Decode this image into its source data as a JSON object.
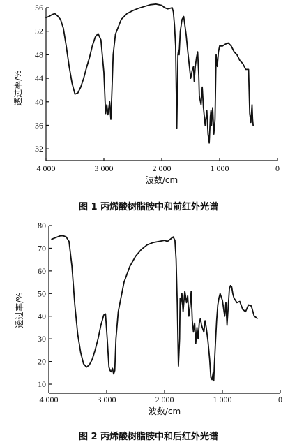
{
  "chart_data": [
    {
      "type": "line",
      "title": "图 1   丙烯酸树脂胺中和前红外光谱",
      "xlabel": "波数/cm",
      "ylabel": "透过率/%",
      "xlim": [
        4000,
        0
      ],
      "ylim": [
        30,
        56
      ],
      "xticks": [
        4000,
        3000,
        2000,
        1000,
        0
      ],
      "xtick_labels": [
        "4 000",
        "3 000",
        "2 000",
        "1 000",
        "0"
      ],
      "yticks": [
        32,
        36,
        40,
        44,
        48,
        52,
        56
      ],
      "ytick_labels": [
        "32",
        "36",
        "40",
        "44",
        "48",
        "52",
        "56"
      ],
      "grid": false,
      "series": [
        {
          "x": [
            4000,
            3950,
            3900,
            3850,
            3800,
            3750,
            3700,
            3650,
            3600,
            3550,
            3500,
            3450,
            3400,
            3350,
            3300,
            3250,
            3200,
            3150,
            3100,
            3050,
            3000,
            2970,
            2950,
            2930,
            2900,
            2880,
            2860,
            2840,
            2800,
            2700,
            2600,
            2500,
            2400,
            2300,
            2200,
            2100,
            2000,
            1950,
            1900,
            1850,
            1820,
            1800,
            1780,
            1760,
            1740,
            1730,
            1720,
            1710,
            1700,
            1680,
            1650,
            1620,
            1600,
            1580,
            1550,
            1500,
            1470,
            1450,
            1440,
            1420,
            1400,
            1380,
            1360,
            1350,
            1320,
            1300,
            1280,
            1250,
            1220,
            1200,
            1180,
            1160,
            1150,
            1140,
            1120,
            1100,
            1080,
            1060,
            1040,
            1020,
            1000,
            950,
            900,
            850,
            800,
            750,
            700,
            650,
            600,
            550,
            500,
            480,
            460,
            440,
            430,
            420
          ],
          "y": [
            54.3,
            54.5,
            54.8,
            55.0,
            54.6,
            54.0,
            52.5,
            49.5,
            46.0,
            43.2,
            41.3,
            41.5,
            42.5,
            44.0,
            45.8,
            47.5,
            49.5,
            51.0,
            51.6,
            50.5,
            45.0,
            38.0,
            39.5,
            37.8,
            40.0,
            37.0,
            42.0,
            48.0,
            51.5,
            54.0,
            55.0,
            55.5,
            55.9,
            56.2,
            56.5,
            56.6,
            56.4,
            56.0,
            55.8,
            55.9,
            56.0,
            55.3,
            53.0,
            49.5,
            35.5,
            42.0,
            48.0,
            48.8,
            48.0,
            52.0,
            54.0,
            54.5,
            53.0,
            51.5,
            48.5,
            44.0,
            45.5,
            46.0,
            43.5,
            46.0,
            47.5,
            48.5,
            44.5,
            41.0,
            39.5,
            42.5,
            39.0,
            36.0,
            38.5,
            34.5,
            33.0,
            37.5,
            38.5,
            36.0,
            39.0,
            34.5,
            37.0,
            48.0,
            46.0,
            48.5,
            49.5,
            49.5,
            49.8,
            50.0,
            49.5,
            48.5,
            48.0,
            47.0,
            46.5,
            45.5,
            45.5,
            38.0,
            36.5,
            39.5,
            37.0,
            36.0
          ]
        }
      ]
    },
    {
      "type": "line",
      "title": "图 2   丙烯酸树脂胺中和后红外光谱",
      "xlabel": "波数/cm",
      "ylabel": "透过率/%",
      "xlim": [
        4000,
        0
      ],
      "ylim": [
        6,
        80
      ],
      "xticks": [
        4000,
        3000,
        2000,
        1000,
        0
      ],
      "xtick_labels": [
        "4 000",
        "3 000",
        "2 000",
        "1 000",
        "0"
      ],
      "yticks": [
        10,
        20,
        30,
        40,
        50,
        60,
        70,
        80
      ],
      "ytick_labels": [
        "10",
        "20",
        "30",
        "40",
        "50",
        "60",
        "70",
        "80"
      ],
      "grid": false,
      "series": [
        {
          "x": [
            3950,
            3900,
            3850,
            3800,
            3750,
            3700,
            3650,
            3600,
            3550,
            3500,
            3450,
            3400,
            3350,
            3300,
            3250,
            3200,
            3150,
            3100,
            3050,
            3020,
            2990,
            2960,
            2940,
            2920,
            2900,
            2880,
            2860,
            2840,
            2800,
            2700,
            2600,
            2500,
            2400,
            2300,
            2200,
            2100,
            2000,
            1950,
            1900,
            1850,
            1820,
            1800,
            1780,
            1760,
            1740,
            1730,
            1720,
            1700,
            1680,
            1650,
            1620,
            1600,
            1580,
            1560,
            1540,
            1520,
            1500,
            1480,
            1460,
            1440,
            1420,
            1400,
            1380,
            1360,
            1320,
            1300,
            1280,
            1250,
            1220,
            1200,
            1180,
            1160,
            1150,
            1140,
            1120,
            1100,
            1080,
            1060,
            1040,
            1000,
            960,
            940,
            920,
            900,
            880,
            860,
            840,
            820,
            800,
            750,
            700,
            650,
            600,
            550,
            500,
            450,
            420,
            400
          ],
          "y": [
            74.0,
            74.5,
            75.0,
            75.5,
            75.5,
            75.0,
            73.0,
            62.0,
            45.0,
            32.0,
            24.0,
            19.0,
            17.5,
            18.5,
            21.0,
            25.0,
            30.0,
            36.0,
            40.5,
            41.0,
            30.0,
            17.5,
            16.0,
            15.5,
            17.0,
            14.5,
            16.0,
            30.0,
            42.0,
            55.0,
            62.0,
            66.5,
            69.5,
            71.5,
            72.5,
            73.0,
            73.5,
            73.0,
            74.0,
            75.0,
            73.5,
            65.0,
            45.0,
            18.0,
            30.0,
            48.0,
            45.0,
            50.0,
            42.0,
            51.0,
            46.0,
            49.0,
            40.0,
            44.0,
            51.0,
            38.0,
            33.0,
            37.0,
            28.0,
            35.0,
            30.0,
            37.0,
            39.0,
            36.0,
            33.0,
            38.0,
            35.0,
            29.0,
            21.0,
            13.0,
            12.0,
            15.0,
            11.5,
            18.0,
            28.0,
            38.0,
            45.0,
            48.0,
            50.0,
            47.0,
            40.0,
            46.0,
            36.0,
            44.0,
            52.0,
            53.5,
            53.0,
            50.0,
            48.0,
            46.0,
            46.5,
            43.0,
            42.0,
            45.0,
            44.5,
            40.0,
            39.5,
            39.0
          ]
        }
      ]
    }
  ]
}
